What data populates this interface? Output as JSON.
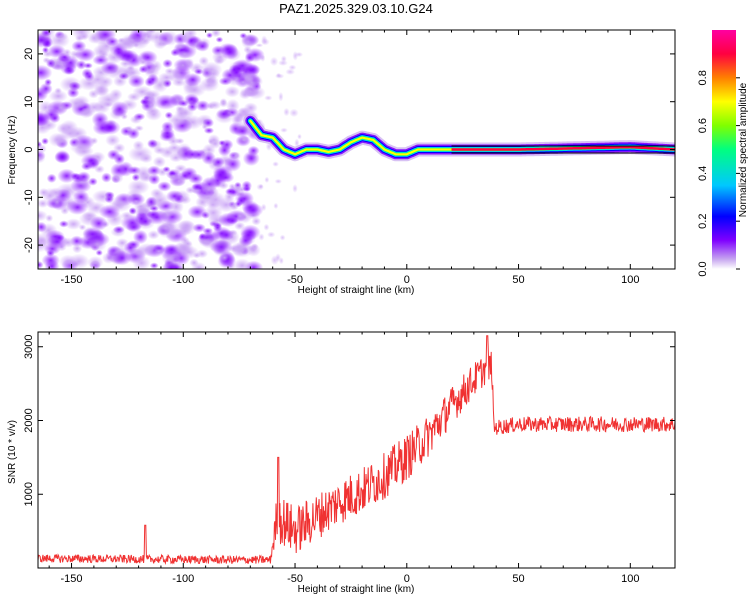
{
  "chart_data": [
    {
      "type": "heatmap",
      "title": "PAZ1.2025.329.03.10.G24",
      "xlabel": "Height of straight line (km)",
      "ylabel": "Frequency (Hz)",
      "xlim": [
        -165,
        120
      ],
      "ylim": [
        -25,
        25
      ],
      "xticks": [
        -150,
        -100,
        -50,
        0,
        50,
        100
      ],
      "yticks": [
        -20,
        -10,
        0,
        10,
        20
      ],
      "colorbar": {
        "label": "Normalized spectral amplitude",
        "range": [
          0,
          1
        ],
        "ticks": [
          "0.0",
          "0.2",
          "0.4",
          "0.6",
          "0.8"
        ],
        "colormap": [
          "#ffffff",
          "#c8a8f0",
          "#7f00ff",
          "#0000ff",
          "#00c8ff",
          "#00ff80",
          "#80ff00",
          "#ffff00",
          "#ff8000",
          "#ff0040",
          "#ff00a0"
        ]
      },
      "noise_region": {
        "x_from": -165,
        "x_to": -67,
        "amplitude": 0.15
      },
      "signal_line": [
        {
          "x": -70,
          "f": 6
        },
        {
          "x": -65,
          "f": 3
        },
        {
          "x": -60,
          "f": 2.5
        },
        {
          "x": -55,
          "f": 0
        },
        {
          "x": -50,
          "f": -1
        },
        {
          "x": -45,
          "f": 0
        },
        {
          "x": -40,
          "f": 0
        },
        {
          "x": -35,
          "f": -0.5
        },
        {
          "x": -30,
          "f": 0
        },
        {
          "x": -25,
          "f": 1.5
        },
        {
          "x": -20,
          "f": 2.5
        },
        {
          "x": -15,
          "f": 2
        },
        {
          "x": -10,
          "f": 0
        },
        {
          "x": -5,
          "f": -1
        },
        {
          "x": 0,
          "f": -1
        },
        {
          "x": 5,
          "f": 0
        },
        {
          "x": 10,
          "f": 0
        },
        {
          "x": 20,
          "f": 0
        },
        {
          "x": 50,
          "f": 0
        },
        {
          "x": 100,
          "f": 0.5
        },
        {
          "x": 120,
          "f": 0
        }
      ]
    },
    {
      "type": "line",
      "title": "",
      "xlabel": "Height of straight line (km)",
      "ylabel": "SNR (10 * v/v)",
      "xlim": [
        -165,
        120
      ],
      "ylim": [
        0,
        3200
      ],
      "xticks": [
        -150,
        -100,
        -50,
        0,
        50,
        100
      ],
      "yticks": [
        1000,
        2000,
        3000
      ],
      "color": "#f03232",
      "envelope": [
        {
          "x": -165,
          "y": 130
        },
        {
          "x": -120,
          "y": 120
        },
        {
          "x": -80,
          "y": 110
        },
        {
          "x": -61,
          "y": 110
        },
        {
          "x": -58,
          "y": 700
        },
        {
          "x": -50,
          "y": 500
        },
        {
          "x": -40,
          "y": 700
        },
        {
          "x": -30,
          "y": 900
        },
        {
          "x": -20,
          "y": 1050
        },
        {
          "x": -10,
          "y": 1250
        },
        {
          "x": 0,
          "y": 1500
        },
        {
          "x": 10,
          "y": 1800
        },
        {
          "x": 20,
          "y": 2200
        },
        {
          "x": 30,
          "y": 2550
        },
        {
          "x": 35,
          "y": 2700
        },
        {
          "x": 38,
          "y": 2750
        },
        {
          "x": 39,
          "y": 1900
        },
        {
          "x": 50,
          "y": 1950
        },
        {
          "x": 80,
          "y": 1950
        },
        {
          "x": 120,
          "y": 1950
        }
      ],
      "noise": [
        {
          "x": -165,
          "amp": 80
        },
        {
          "x": -61,
          "amp": 80
        },
        {
          "x": -58,
          "amp": 500
        },
        {
          "x": -40,
          "amp": 450
        },
        {
          "x": 0,
          "amp": 450
        },
        {
          "x": 38,
          "amp": 300
        },
        {
          "x": 39,
          "amp": 150
        },
        {
          "x": 120,
          "amp": 150
        }
      ],
      "spikes": [
        {
          "x": -117,
          "y": 580
        },
        {
          "x": -57.5,
          "y": 1500
        },
        {
          "x": 36,
          "y": 3150
        }
      ]
    }
  ]
}
